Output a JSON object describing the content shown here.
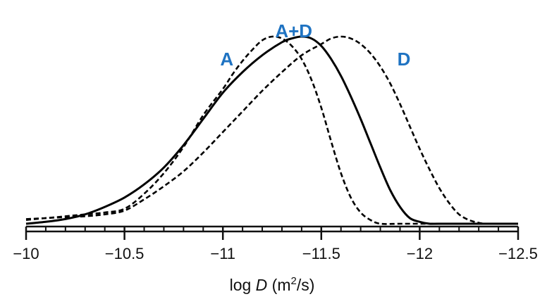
{
  "chart_data": {
    "type": "line",
    "xlabel": {
      "prefix": "log ",
      "italic": "D",
      "units_pre": " (m",
      "units_sup": "2",
      "units_post": "/s)"
    },
    "ylabel": "",
    "xlim": [
      -10,
      -12.5
    ],
    "xticks": [
      -10,
      -10.5,
      -11,
      -11.5,
      -12,
      -12.5
    ],
    "xtick_labels": [
      "−10",
      "−10.5",
      "−11",
      "−11.5",
      "−12",
      "−12.5"
    ],
    "minor_step": 0.1,
    "ylim": [
      0,
      1
    ],
    "label_color": "#1f73c2",
    "series": [
      {
        "name": "A",
        "style": "dashed",
        "label_at": [
          -11.02,
          0.88
        ],
        "x": [
          -10.0,
          -10.1,
          -10.2,
          -10.3,
          -10.4,
          -10.5,
          -10.6,
          -10.7,
          -10.8,
          -10.9,
          -11.0,
          -11.05,
          -11.1,
          -11.15,
          -11.2,
          -11.25,
          -11.3,
          -11.35,
          -11.4,
          -11.45,
          -11.5,
          -11.55,
          -11.6,
          -11.65,
          -11.7,
          -11.75,
          -11.8,
          -11.9,
          -12.0,
          -12.5
        ],
        "y": [
          0.025,
          0.03,
          0.04,
          0.05,
          0.06,
          0.08,
          0.16,
          0.27,
          0.41,
          0.58,
          0.72,
          0.8,
          0.87,
          0.93,
          0.98,
          1.0,
          0.99,
          0.95,
          0.88,
          0.77,
          0.62,
          0.44,
          0.27,
          0.14,
          0.06,
          0.02,
          0.0,
          0.0,
          0.0,
          0.0
        ]
      },
      {
        "name": "A+D",
        "style": "solid",
        "label_at": [
          -11.36,
          1.03
        ],
        "x": [
          -10.0,
          -10.1,
          -10.2,
          -10.3,
          -10.4,
          -10.5,
          -10.6,
          -10.7,
          -10.8,
          -10.9,
          -11.0,
          -11.1,
          -11.2,
          -11.3,
          -11.35,
          -11.4,
          -11.45,
          -11.5,
          -11.55,
          -11.6,
          -11.65,
          -11.7,
          -11.75,
          -11.8,
          -11.85,
          -11.9,
          -11.95,
          -12.0,
          -12.05,
          -12.1,
          -12.5
        ],
        "y": [
          0.0,
          0.01,
          0.025,
          0.05,
          0.09,
          0.14,
          0.21,
          0.3,
          0.42,
          0.56,
          0.7,
          0.81,
          0.9,
          0.97,
          0.99,
          1.0,
          0.99,
          0.95,
          0.88,
          0.79,
          0.68,
          0.56,
          0.43,
          0.3,
          0.18,
          0.09,
          0.03,
          0.01,
          0.0,
          0.0,
          0.0
        ]
      },
      {
        "name": "D",
        "style": "dashed",
        "label_at": [
          -11.92,
          0.88
        ],
        "x": [
          -10.0,
          -10.1,
          -10.2,
          -10.3,
          -10.4,
          -10.5,
          -10.6,
          -10.7,
          -10.8,
          -10.9,
          -11.0,
          -11.1,
          -11.2,
          -11.3,
          -11.4,
          -11.5,
          -11.55,
          -11.6,
          -11.65,
          -11.7,
          -11.75,
          -11.8,
          -11.85,
          -11.9,
          -11.95,
          -12.0,
          -12.05,
          -12.1,
          -12.15,
          -12.2,
          -12.25,
          -12.3,
          -12.35,
          -12.5
        ],
        "y": [
          0.02,
          0.03,
          0.035,
          0.04,
          0.05,
          0.07,
          0.13,
          0.2,
          0.28,
          0.38,
          0.49,
          0.6,
          0.71,
          0.81,
          0.9,
          0.96,
          0.99,
          1.0,
          0.99,
          0.96,
          0.91,
          0.84,
          0.75,
          0.64,
          0.52,
          0.4,
          0.29,
          0.19,
          0.11,
          0.05,
          0.02,
          0.005,
          0.0,
          0.0
        ]
      }
    ]
  }
}
